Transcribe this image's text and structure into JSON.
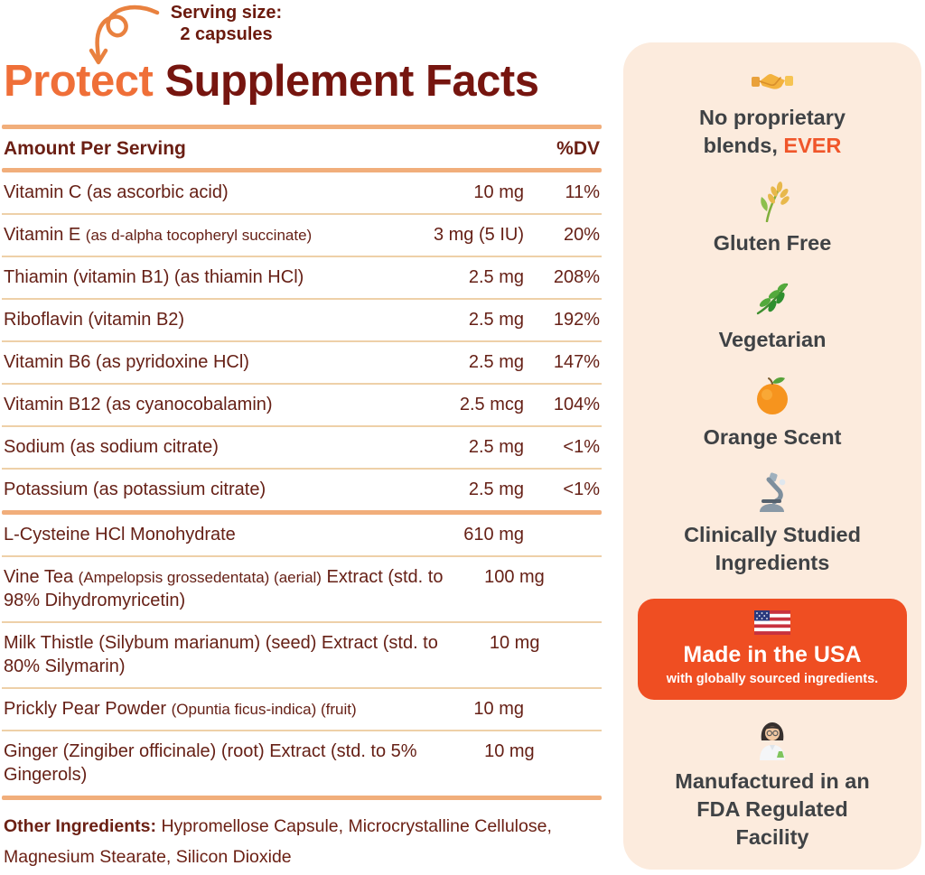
{
  "serving": {
    "line1": "Serving size:",
    "line2": "2 capsules"
  },
  "title": {
    "brand": "Protect",
    "rest": " Supplement Facts"
  },
  "table": {
    "header": {
      "left": "Amount Per Serving",
      "right": "%DV"
    },
    "groups": [
      {
        "rows": [
          {
            "name": [
              {
                "t": "Vitamin C (as ascorbic acid)"
              }
            ],
            "amount": "10 mg",
            "dv": "11%"
          },
          {
            "name": [
              {
                "t": "Vitamin E "
              },
              {
                "t": "(as d-alpha tocopheryl succinate)",
                "small": true
              }
            ],
            "amount": "3 mg (5 IU)",
            "dv": "20%"
          },
          {
            "name": [
              {
                "t": "Thiamin (vitamin B1) (as thiamin HCl)"
              }
            ],
            "amount": "2.5 mg",
            "dv": "208%"
          },
          {
            "name": [
              {
                "t": "Riboflavin (vitamin B2)"
              }
            ],
            "amount": "2.5 mg",
            "dv": "192%"
          },
          {
            "name": [
              {
                "t": "Vitamin B6 (as pyridoxine HCl)"
              }
            ],
            "amount": "2.5 mg",
            "dv": "147%"
          },
          {
            "name": [
              {
                "t": "Vitamin B12 (as cyanocobalamin)"
              }
            ],
            "amount": "2.5 mcg",
            "dv": "104%"
          },
          {
            "name": [
              {
                "t": "Sodium (as sodium citrate)"
              }
            ],
            "amount": "2.5 mg",
            "dv": "<1%"
          },
          {
            "name": [
              {
                "t": "Potassium (as potassium citrate)"
              }
            ],
            "amount": "2.5 mg",
            "dv": "<1%"
          }
        ]
      },
      {
        "rows": [
          {
            "name": [
              {
                "t": "L-Cysteine HCl Monohydrate"
              }
            ],
            "amount": "610 mg",
            "dv": ""
          },
          {
            "name": [
              {
                "t": "Vine Tea "
              },
              {
                "t": "(Ampelopsis grossedentata) (aerial)",
                "small": true
              },
              {
                "t": " Extract (std. to 98% Dihydromyricetin)"
              }
            ],
            "amount": "100 mg",
            "dv": ""
          },
          {
            "name": [
              {
                "t": "Milk Thistle (Silybum marianum) (seed) Extract (std. to 80% Silymarin)"
              }
            ],
            "amount": "10 mg",
            "dv": ""
          },
          {
            "name": [
              {
                "t": "Prickly Pear Powder "
              },
              {
                "t": "(Opuntia ficus-indica) (fruit)",
                "small": true
              }
            ],
            "amount": "10 mg",
            "dv": ""
          },
          {
            "name": [
              {
                "t": "Ginger (Zingiber officinale) (root) Extract (std. to 5% Gingerols)"
              }
            ],
            "amount": "10 mg",
            "dv": ""
          }
        ]
      }
    ],
    "other_ingredients": {
      "label": "Other Ingredients:",
      "text": " Hypromellose Capsule, Microcrystalline Cellulose, Magnesium Stearate, Silicon Dioxide"
    }
  },
  "panel": {
    "badges": [
      {
        "icon": "handshake-icon",
        "label": [
          {
            "t": "No proprietary blends, "
          },
          {
            "t": "EVER",
            "accent": true
          }
        ]
      },
      {
        "icon": "sheaf-of-rice-icon",
        "label": [
          {
            "t": "Gluten Free"
          }
        ]
      },
      {
        "icon": "herb-icon",
        "label": [
          {
            "t": "Vegetarian"
          }
        ]
      },
      {
        "icon": "tangerine-icon",
        "label": [
          {
            "t": "Orange Scent"
          }
        ]
      },
      {
        "icon": "microscope-icon",
        "label": [
          {
            "t": "Clinically Studied Ingredients"
          }
        ]
      },
      {
        "type": "card",
        "icon": "usa-flag-icon",
        "title": "Made in the USA",
        "subtitle": "with globally sourced ingredients."
      },
      {
        "icon": "woman-scientist-icon",
        "label": [
          {
            "t": "Manufactured in an FDA Regulated Facility"
          }
        ]
      }
    ]
  },
  "colors": {
    "accent_orange": "#ef6f38",
    "title_maroon": "#76150f",
    "body_maroon": "#662016",
    "divider_thick": "#f1ae7b",
    "divider_thin": "#eed0a8",
    "panel_bg": "#fcebdd",
    "panel_text": "#3f4245",
    "usa_card_bg": "#ef4e22",
    "ever_orange": "#f0562a"
  }
}
